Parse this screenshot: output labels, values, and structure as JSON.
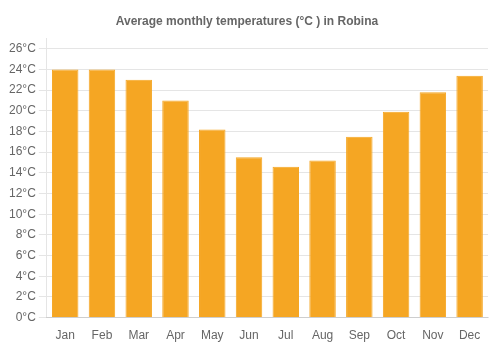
{
  "chart_data": {
    "type": "bar",
    "title": "Average monthly temperatures (°C ) in Robina",
    "categories": [
      "Jan",
      "Feb",
      "Mar",
      "Apr",
      "May",
      "Jun",
      "Jul",
      "Aug",
      "Sep",
      "Oct",
      "Nov",
      "Dec"
    ],
    "values": [
      24.0,
      24.0,
      23.0,
      21.0,
      18.2,
      15.5,
      14.6,
      15.2,
      17.5,
      19.9,
      21.8,
      23.4
    ],
    "color": "#F5A623",
    "ylim": [
      0,
      27
    ],
    "yticks": [
      {
        "value": 0,
        "label": "0°C"
      },
      {
        "value": 2,
        "label": "2°C"
      },
      {
        "value": 4,
        "label": "4°C"
      },
      {
        "value": 6,
        "label": "6°C"
      },
      {
        "value": 8,
        "label": "8°C"
      },
      {
        "value": 10,
        "label": "10°C"
      },
      {
        "value": 12,
        "label": "12°C"
      },
      {
        "value": 14,
        "label": "14°C"
      },
      {
        "value": 16,
        "label": "16°C"
      },
      {
        "value": 18,
        "label": "18°C"
      },
      {
        "value": 20,
        "label": "20°C"
      },
      {
        "value": 22,
        "label": "22°C"
      },
      {
        "value": 24,
        "label": "24°C"
      },
      {
        "value": 26,
        "label": "26°C"
      }
    ],
    "grid": true
  }
}
